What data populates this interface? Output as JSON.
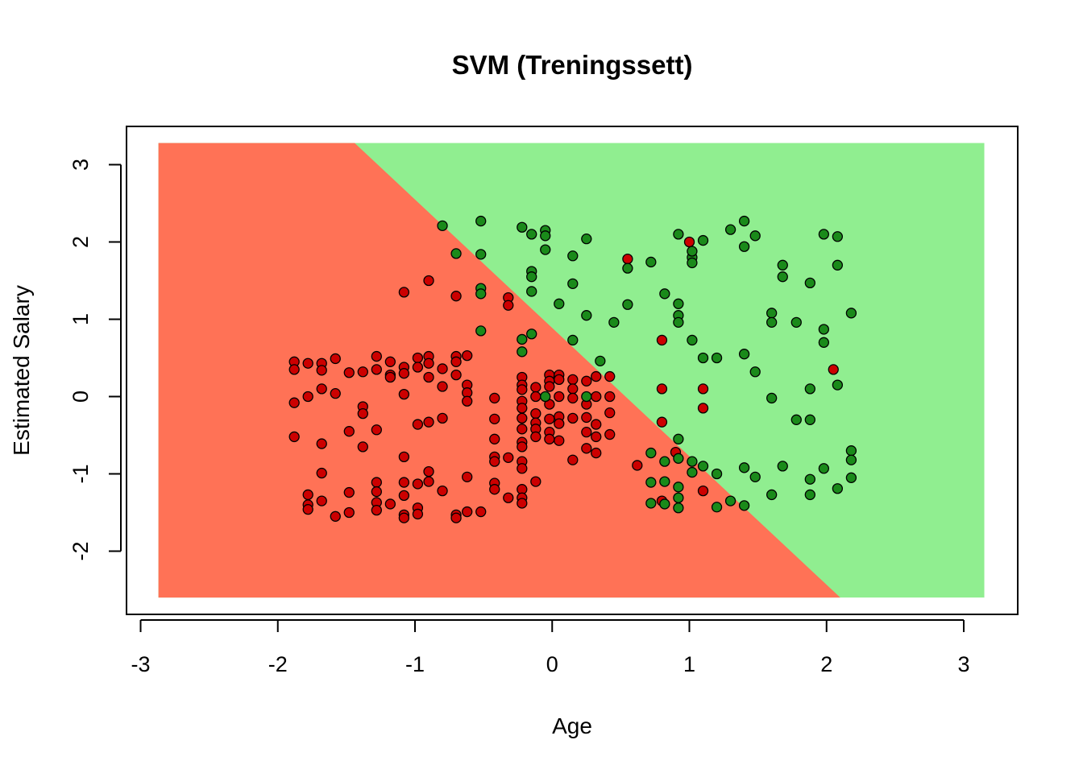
{
  "chart_data": {
    "type": "scatter",
    "title": "SVM (Treningssett)",
    "xlabel": "Age",
    "ylabel": "Estimated Salary",
    "xlim": [
      -3.1,
      3.4
    ],
    "ylim": [
      -2.8,
      3.55
    ],
    "region_extent": {
      "x": [
        -2.87,
        3.15
      ],
      "y": [
        -2.6,
        3.28
      ]
    },
    "x_ticks": [
      {
        "value": -3,
        "label": "-3"
      },
      {
        "value": -2,
        "label": "-2"
      },
      {
        "value": -1,
        "label": "-1"
      },
      {
        "value": 0,
        "label": "0"
      },
      {
        "value": 1,
        "label": "1"
      },
      {
        "value": 2,
        "label": "2"
      },
      {
        "value": 3,
        "label": "3"
      }
    ],
    "y_ticks": [
      {
        "value": -2,
        "label": "-2"
      },
      {
        "value": -1,
        "label": "-1"
      },
      {
        "value": 0,
        "label": "0"
      },
      {
        "value": 1,
        "label": "1"
      },
      {
        "value": 2,
        "label": "2"
      },
      {
        "value": 3,
        "label": "3"
      }
    ],
    "decision_boundary": {
      "points": [
        [
          -1.44,
          3.28
        ],
        [
          2.1,
          -2.6
        ]
      ]
    },
    "colors": {
      "region_class_0": "#ff7256",
      "region_class_1": "#90ee90",
      "point_class_0": "#cc0000",
      "point_class_1": "#1a8a1a",
      "point_stroke": "#000000"
    },
    "series": [
      {
        "class": 0,
        "points": [
          [
            -1.88,
            0.45
          ],
          [
            -1.88,
            0.35
          ],
          [
            -1.88,
            -0.08
          ],
          [
            -1.88,
            -0.52
          ],
          [
            -1.78,
            0.43
          ],
          [
            -1.78,
            0.0
          ],
          [
            -1.78,
            -1.27
          ],
          [
            -1.78,
            -1.4
          ],
          [
            -1.78,
            -1.46
          ],
          [
            -1.68,
            0.43
          ],
          [
            -1.68,
            0.34
          ],
          [
            -1.68,
            0.1
          ],
          [
            -1.68,
            -0.61
          ],
          [
            -1.68,
            -0.99
          ],
          [
            -1.68,
            -1.35
          ],
          [
            -1.58,
            0.49
          ],
          [
            -1.58,
            0.04
          ],
          [
            -1.58,
            -1.55
          ],
          [
            -1.48,
            0.31
          ],
          [
            -1.48,
            -0.45
          ],
          [
            -1.48,
            -1.24
          ],
          [
            -1.48,
            -1.5
          ],
          [
            -1.38,
            0.32
          ],
          [
            -1.38,
            -0.13
          ],
          [
            -1.38,
            -0.22
          ],
          [
            -1.38,
            -0.65
          ],
          [
            -1.28,
            0.52
          ],
          [
            -1.28,
            0.35
          ],
          [
            -1.28,
            -0.43
          ],
          [
            -1.28,
            -1.11
          ],
          [
            -1.28,
            -1.23
          ],
          [
            -1.28,
            -1.37
          ],
          [
            -1.28,
            -1.47
          ],
          [
            -1.18,
            0.45
          ],
          [
            -1.18,
            0.28
          ],
          [
            -1.18,
            0.25
          ],
          [
            -1.18,
            -1.39
          ],
          [
            -1.08,
            1.35
          ],
          [
            -1.08,
            0.38
          ],
          [
            -1.08,
            0.3
          ],
          [
            -1.08,
            0.03
          ],
          [
            -1.08,
            -0.78
          ],
          [
            -1.08,
            -1.11
          ],
          [
            -1.08,
            -1.28
          ],
          [
            -1.08,
            -1.53
          ],
          [
            -1.08,
            -1.57
          ],
          [
            -0.98,
            0.5
          ],
          [
            -0.98,
            0.38
          ],
          [
            -0.98,
            -0.36
          ],
          [
            -0.98,
            -1.13
          ],
          [
            -0.98,
            -1.44
          ],
          [
            -0.98,
            -1.52
          ],
          [
            -0.9,
            1.5
          ],
          [
            -0.9,
            0.52
          ],
          [
            -0.9,
            0.43
          ],
          [
            -0.9,
            0.25
          ],
          [
            -0.9,
            -0.33
          ],
          [
            -0.9,
            -0.97
          ],
          [
            -0.9,
            -1.1
          ],
          [
            -0.8,
            0.36
          ],
          [
            -0.8,
            0.13
          ],
          [
            -0.8,
            -0.28
          ],
          [
            -0.8,
            -1.22
          ],
          [
            -0.7,
            1.3
          ],
          [
            -0.7,
            0.52
          ],
          [
            -0.7,
            0.45
          ],
          [
            -0.7,
            0.28
          ],
          [
            -0.7,
            -1.53
          ],
          [
            -0.7,
            -1.57
          ],
          [
            -0.62,
            0.53
          ],
          [
            -0.62,
            0.15
          ],
          [
            -0.62,
            0.05
          ],
          [
            -0.62,
            -0.06
          ],
          [
            -0.62,
            -1.04
          ],
          [
            -0.62,
            -1.49
          ],
          [
            -0.52,
            -1.49
          ],
          [
            -0.42,
            -0.02
          ],
          [
            -0.42,
            -0.29
          ],
          [
            -0.42,
            -0.55
          ],
          [
            -0.42,
            -0.78
          ],
          [
            -0.42,
            -0.84
          ],
          [
            -0.42,
            -1.12
          ],
          [
            -0.42,
            -1.2
          ],
          [
            -0.32,
            1.28
          ],
          [
            -0.32,
            1.18
          ],
          [
            -0.32,
            -0.79
          ],
          [
            -0.32,
            -1.31
          ],
          [
            -0.22,
            0.25
          ],
          [
            -0.22,
            0.15
          ],
          [
            -0.22,
            0.09
          ],
          [
            -0.22,
            -0.06
          ],
          [
            -0.22,
            -0.15
          ],
          [
            -0.22,
            -0.28
          ],
          [
            -0.22,
            -0.42
          ],
          [
            -0.22,
            -0.59
          ],
          [
            -0.22,
            -0.65
          ],
          [
            -0.22,
            -0.84
          ],
          [
            -0.22,
            -0.93
          ],
          [
            -0.22,
            -1.2
          ],
          [
            -0.22,
            -1.31
          ],
          [
            -0.22,
            -1.38
          ],
          [
            -0.12,
            0.12
          ],
          [
            -0.12,
            0.0
          ],
          [
            -0.12,
            -0.22
          ],
          [
            -0.12,
            -0.34
          ],
          [
            -0.12,
            -0.42
          ],
          [
            -0.12,
            -0.52
          ],
          [
            -0.12,
            -1.1
          ],
          [
            -0.02,
            0.28
          ],
          [
            -0.02,
            0.2
          ],
          [
            -0.02,
            0.13
          ],
          [
            -0.02,
            -0.1
          ],
          [
            -0.02,
            -0.29
          ],
          [
            -0.02,
            -0.46
          ],
          [
            -0.02,
            -0.55
          ],
          [
            0.05,
            0.28
          ],
          [
            0.05,
            0.22
          ],
          [
            0.05,
            0.0
          ],
          [
            0.05,
            -0.26
          ],
          [
            0.05,
            -0.35
          ],
          [
            0.05,
            -0.57
          ],
          [
            0.15,
            0.22
          ],
          [
            0.15,
            0.1
          ],
          [
            0.15,
            -0.02
          ],
          [
            0.15,
            -0.28
          ],
          [
            0.15,
            -0.82
          ],
          [
            0.25,
            0.2
          ],
          [
            0.25,
            -0.1
          ],
          [
            0.25,
            -0.27
          ],
          [
            0.25,
            -0.46
          ],
          [
            0.25,
            -0.67
          ],
          [
            0.32,
            0.26
          ],
          [
            0.32,
            0.0
          ],
          [
            0.32,
            -0.36
          ],
          [
            0.32,
            -0.52
          ],
          [
            0.32,
            -0.73
          ],
          [
            0.42,
            0.26
          ],
          [
            0.42,
            0.0
          ],
          [
            0.42,
            -0.21
          ],
          [
            0.42,
            -0.49
          ],
          [
            0.55,
            1.78
          ],
          [
            0.62,
            -0.89
          ],
          [
            0.8,
            0.73
          ],
          [
            0.8,
            0.1
          ],
          [
            0.8,
            -0.33
          ],
          [
            0.8,
            -1.35
          ],
          [
            0.9,
            -0.72
          ],
          [
            1.0,
            2.0
          ],
          [
            1.1,
            0.1
          ],
          [
            1.1,
            -0.15
          ],
          [
            1.1,
            -1.22
          ],
          [
            2.05,
            0.35
          ]
        ]
      },
      {
        "class": 1,
        "points": [
          [
            -0.8,
            2.21
          ],
          [
            -0.7,
            1.85
          ],
          [
            -0.52,
            2.27
          ],
          [
            -0.52,
            1.84
          ],
          [
            -0.52,
            1.4
          ],
          [
            -0.52,
            1.33
          ],
          [
            -0.52,
            0.85
          ],
          [
            -0.22,
            2.19
          ],
          [
            -0.22,
            0.74
          ],
          [
            -0.22,
            0.58
          ],
          [
            -0.15,
            2.1
          ],
          [
            -0.15,
            1.62
          ],
          [
            -0.15,
            1.55
          ],
          [
            -0.15,
            1.36
          ],
          [
            -0.15,
            0.81
          ],
          [
            -0.05,
            2.15
          ],
          [
            -0.05,
            2.08
          ],
          [
            -0.05,
            1.9
          ],
          [
            -0.05,
            0.0
          ],
          [
            0.05,
            1.2
          ],
          [
            0.15,
            1.82
          ],
          [
            0.15,
            1.46
          ],
          [
            0.15,
            0.73
          ],
          [
            0.25,
            2.04
          ],
          [
            0.25,
            1.05
          ],
          [
            0.25,
            0.0
          ],
          [
            0.35,
            0.46
          ],
          [
            0.45,
            0.96
          ],
          [
            0.55,
            1.66
          ],
          [
            0.55,
            1.19
          ],
          [
            0.72,
            1.74
          ],
          [
            0.72,
            -0.73
          ],
          [
            0.72,
            -1.11
          ],
          [
            0.72,
            -1.38
          ],
          [
            0.82,
            1.33
          ],
          [
            0.82,
            -0.84
          ],
          [
            0.82,
            -1.1
          ],
          [
            0.82,
            -1.39
          ],
          [
            0.92,
            2.1
          ],
          [
            0.92,
            1.2
          ],
          [
            0.92,
            1.05
          ],
          [
            0.92,
            0.96
          ],
          [
            0.92,
            -0.55
          ],
          [
            0.92,
            -0.8
          ],
          [
            0.92,
            -1.17
          ],
          [
            0.92,
            -1.31
          ],
          [
            0.92,
            -1.44
          ],
          [
            1.02,
            1.8
          ],
          [
            1.02,
            1.73
          ],
          [
            1.02,
            1.88
          ],
          [
            1.02,
            0.73
          ],
          [
            1.02,
            -0.84
          ],
          [
            1.02,
            -0.98
          ],
          [
            1.1,
            2.02
          ],
          [
            1.1,
            0.5
          ],
          [
            1.1,
            -0.9
          ],
          [
            1.2,
            0.5
          ],
          [
            1.2,
            -1.0
          ],
          [
            1.2,
            -1.43
          ],
          [
            1.3,
            2.16
          ],
          [
            1.3,
            -1.35
          ],
          [
            1.4,
            2.27
          ],
          [
            1.4,
            1.94
          ],
          [
            1.4,
            0.55
          ],
          [
            1.4,
            -0.92
          ],
          [
            1.4,
            -1.41
          ],
          [
            1.48,
            2.08
          ],
          [
            1.48,
            0.32
          ],
          [
            1.48,
            -1.04
          ],
          [
            1.6,
            1.08
          ],
          [
            1.6,
            0.96
          ],
          [
            1.6,
            -0.02
          ],
          [
            1.6,
            -1.27
          ],
          [
            1.68,
            1.7
          ],
          [
            1.68,
            1.55
          ],
          [
            1.68,
            -0.9
          ],
          [
            1.78,
            0.96
          ],
          [
            1.78,
            -0.3
          ],
          [
            1.88,
            1.47
          ],
          [
            1.88,
            0.1
          ],
          [
            1.88,
            -0.3
          ],
          [
            1.88,
            -1.07
          ],
          [
            1.88,
            -1.27
          ],
          [
            1.98,
            2.1
          ],
          [
            1.98,
            0.87
          ],
          [
            1.98,
            0.7
          ],
          [
            1.98,
            -0.93
          ],
          [
            2.08,
            2.07
          ],
          [
            2.08,
            1.7
          ],
          [
            2.08,
            0.15
          ],
          [
            2.08,
            -1.19
          ],
          [
            2.18,
            1.08
          ],
          [
            2.18,
            -0.7
          ],
          [
            2.18,
            -0.82
          ],
          [
            2.18,
            -1.05
          ]
        ]
      }
    ]
  }
}
